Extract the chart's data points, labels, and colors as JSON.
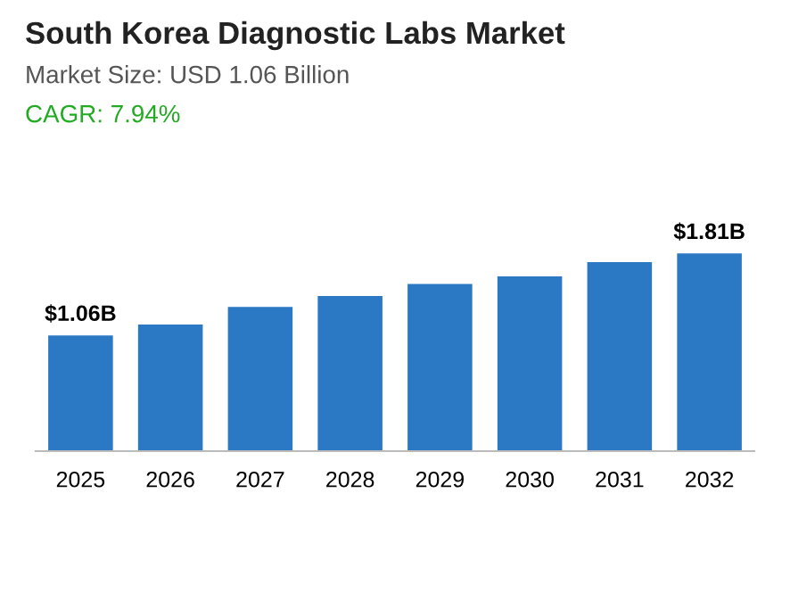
{
  "chart_data": {
    "type": "bar",
    "title": "South Korea Diagnostic Labs Market",
    "subtitle": "Market Size: USD 1.06 Billion",
    "annotations": [
      "CAGR: 7.94%"
    ],
    "categories": [
      "2025",
      "2026",
      "2027",
      "2028",
      "2029",
      "2030",
      "2031",
      "2032"
    ],
    "values": [
      1.06,
      1.16,
      1.32,
      1.42,
      1.53,
      1.6,
      1.73,
      1.81
    ],
    "value_labels": [
      "$1.06B",
      null,
      null,
      null,
      null,
      null,
      null,
      "$1.81B"
    ],
    "color": "#2b78c5",
    "grid": false,
    "legend": false
  }
}
